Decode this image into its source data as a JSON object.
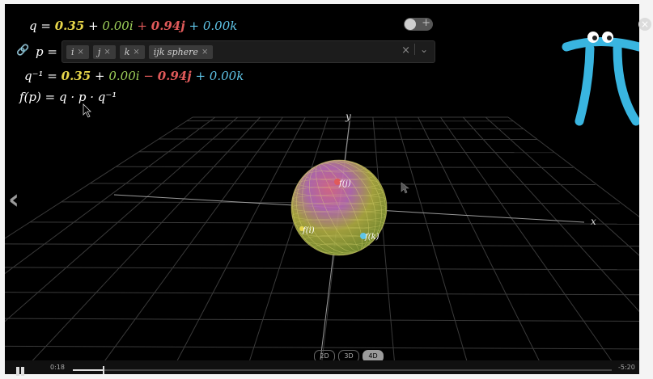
{
  "equations": {
    "q": {
      "lhs": "q =",
      "w": "0.35",
      "x_sign": "+",
      "x": "0.00i",
      "y_sign": "+",
      "y": "0.94j",
      "z_sign": "+",
      "z": "0.00k"
    },
    "p_label": "p =",
    "p_chips": [
      {
        "label": "i",
        "x": "×"
      },
      {
        "label": "j",
        "x": "×"
      },
      {
        "label": "k",
        "x": "×"
      },
      {
        "label": "ijk sphere",
        "x": "×"
      }
    ],
    "p_clear": "×",
    "p_dropdown": "⌄",
    "qinv": {
      "lhs": "q⁻¹ =",
      "w": "0.35",
      "x_sign": "+",
      "x": "0.00i",
      "y_sign": "−",
      "y": "0.94j",
      "z_sign": "+",
      "z": "0.00k"
    },
    "fp": "f(p) = q · p · q⁻¹"
  },
  "toggle_plus": "+",
  "close_symbol": "×",
  "back_symbol": "‹",
  "axis_labels": {
    "y": "y",
    "x": "x"
  },
  "sphere_labels": {
    "fj": "f(j)",
    "fi": "f(i)",
    "fk": "f(k)"
  },
  "modes": [
    {
      "label": "2D",
      "active": false
    },
    {
      "label": "3D",
      "active": false
    },
    {
      "label": "4D",
      "active": true
    }
  ],
  "player": {
    "elapsed": "0:18",
    "remaining": "-5:20",
    "progress": 0.055
  },
  "colors": {
    "yellow": "#e7d64a",
    "green": "#9fd15a",
    "red": "#e05a5a",
    "blue": "#5fc5e8",
    "pi_blue": "#39b5e0"
  }
}
